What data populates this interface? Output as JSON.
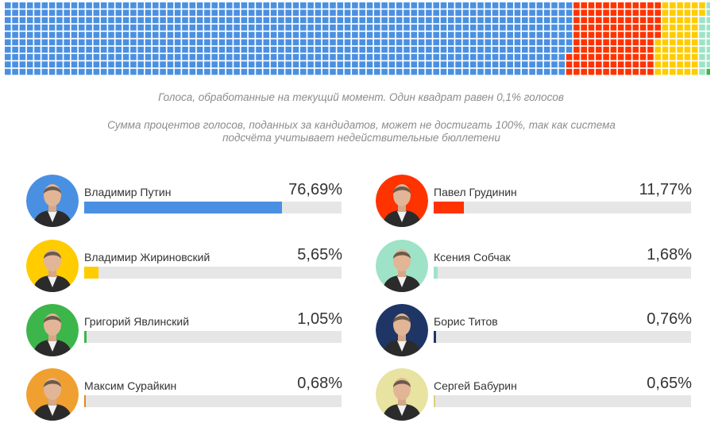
{
  "chart_data": {
    "type": "bar",
    "captions": [
      "Голоса, обработанные на текущий момент. Один квадрат равен 0,1% голосов",
      "Сумма процентов голосов, поданных за кандидатов, может не достигать 100%, так как система подсчёта учитывает недействительные бюллетени"
    ],
    "xlim": [
      0,
      100
    ],
    "candidates": [
      {
        "name": "Владимир Путин",
        "value": 76.69,
        "label": "76,69%",
        "color": "#4a90e2",
        "bg": "#4a90e2"
      },
      {
        "name": "Павел Грудинин",
        "value": 11.77,
        "label": "11,77%",
        "color": "#ff3300",
        "bg": "#ff3300"
      },
      {
        "name": "Владимир Жириновский",
        "value": 5.65,
        "label": "5,65%",
        "color": "#ffcc00",
        "bg": "#ffcc00"
      },
      {
        "name": "Ксения Собчак",
        "value": 1.68,
        "label": "1,68%",
        "color": "#9ee3c7",
        "bg": "#9ee3c7"
      },
      {
        "name": "Григорий Явлинский",
        "value": 1.05,
        "label": "1,05%",
        "color": "#3cb64a",
        "bg": "#3cb64a"
      },
      {
        "name": "Борис Титов",
        "value": 0.76,
        "label": "0,76%",
        "color": "#1f3566",
        "bg": "#1f3566"
      },
      {
        "name": "Максим Сурайкин",
        "value": 0.68,
        "label": "0,68%",
        "color": "#e08a1e",
        "bg": "#f0a030"
      },
      {
        "name": "Сергей Бабурин",
        "value": 0.65,
        "label": "0,65%",
        "color": "#d9d080",
        "bg": "#e8e3a0"
      }
    ],
    "waffle": {
      "rows": 10,
      "segments": [
        {
          "name": "Владимир Путин",
          "squares": 767,
          "color": "#4a90e2"
        },
        {
          "name": "Павел Грудинин",
          "squares": 118,
          "color": "#ff3300"
        },
        {
          "name": "Владимир Жириновский",
          "squares": 57,
          "color": "#ffcc00"
        },
        {
          "name": "Ксения Собчак",
          "squares": 17,
          "color": "#9ee3c7"
        },
        {
          "name": "Григорий Явлинский",
          "squares": 11,
          "color": "#3cb64a"
        },
        {
          "name": "Борис Титов",
          "squares": 8,
          "color": "#1f3566"
        },
        {
          "name": "Максим Сурайкин",
          "squares": 7,
          "color": "#e08a1e"
        },
        {
          "name": "Сергей Бабурин",
          "squares": 7,
          "color": "#d9d080"
        }
      ]
    }
  }
}
